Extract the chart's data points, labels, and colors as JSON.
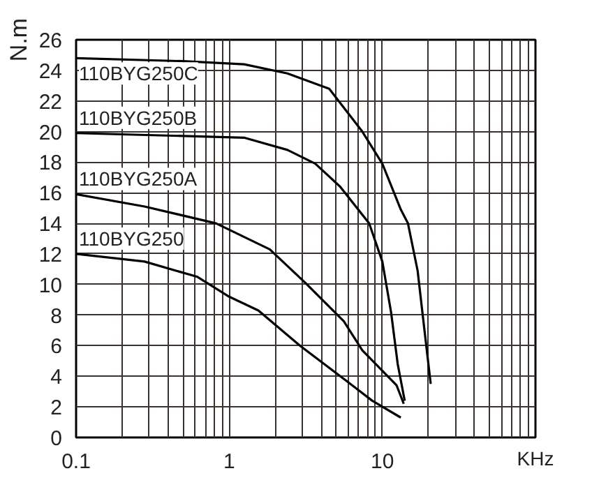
{
  "chart_data": {
    "type": "line",
    "xlabel": "KHz",
    "ylabel": "N.m",
    "log": "x",
    "grid": true,
    "marker": "none",
    "line_style": "solid",
    "xlim": [
      0.1,
      100
    ],
    "ylim": [
      0,
      26
    ],
    "xticks": [
      0.1,
      {
        "value": 0.2,
        "label": null
      },
      {
        "value": 0.3,
        "label": null
      },
      {
        "value": 0.4,
        "label": null
      },
      {
        "value": 0.5,
        "label": null
      },
      {
        "value": 0.6,
        "label": null
      },
      {
        "value": 0.7,
        "label": null
      },
      {
        "value": 0.8,
        "label": null
      },
      {
        "value": 0.9,
        "label": null
      },
      1,
      {
        "value": 2,
        "label": null
      },
      {
        "value": 3,
        "label": null
      },
      {
        "value": 4,
        "label": null
      },
      {
        "value": 5,
        "label": null
      },
      {
        "value": 6,
        "label": null
      },
      {
        "value": 7,
        "label": null
      },
      {
        "value": 8,
        "label": null
      },
      {
        "value": 9,
        "label": null
      },
      10,
      {
        "value": 20,
        "label": null
      },
      {
        "value": 30,
        "label": null
      },
      {
        "value": 40,
        "label": null
      },
      {
        "value": 50,
        "label": null
      },
      {
        "value": 60,
        "label": null
      },
      {
        "value": 70,
        "label": null
      },
      {
        "value": 80,
        "label": null
      },
      {
        "value": 90,
        "label": null
      },
      {
        "value": 100,
        "label": null
      }
    ],
    "yticks": [
      0,
      2,
      4,
      6,
      8,
      10,
      12,
      14,
      16,
      18,
      20,
      22,
      24,
      26
    ],
    "series": [
      {
        "name": "110BYG250C",
        "color": "#000000",
        "x": [
          0.1,
          0.5,
          1.25,
          2.4,
          4.5,
          7.4,
          10,
          13.2,
          14.7,
          17,
          18.9,
          20.7
        ],
        "values": [
          24.8,
          24.6,
          24.4,
          23.8,
          22.8,
          20.0,
          17.9,
          14.9,
          14.0,
          10.9,
          6.9,
          3.5
        ]
      },
      {
        "name": "110BYG250B",
        "color": "#000000",
        "x": [
          0.1,
          1.25,
          2.4,
          3.65,
          5.3,
          8.2,
          10,
          11.4,
          12.6,
          14
        ],
        "values": [
          19.9,
          19.6,
          18.8,
          17.9,
          16.4,
          14.0,
          11.5,
          8.2,
          4.8,
          2.4
        ]
      },
      {
        "name": "110BYG250A",
        "color": "#000000",
        "x": [
          0.1,
          0.28,
          0.82,
          1.84,
          3.15,
          5.6,
          7.4,
          12.4,
          13.8
        ],
        "values": [
          15.9,
          15.1,
          14.0,
          12.3,
          10.1,
          7.6,
          5.7,
          3.4,
          2.2
        ]
      },
      {
        "name": "110BYG250",
        "color": "#000000",
        "x": [
          0.1,
          0.28,
          0.62,
          1.0,
          1.55,
          2.9,
          6.0,
          8.6,
          13.2
        ],
        "values": [
          12.0,
          11.5,
          10.5,
          9.2,
          8.3,
          6.0,
          3.6,
          2.4,
          1.3
        ]
      }
    ]
  }
}
